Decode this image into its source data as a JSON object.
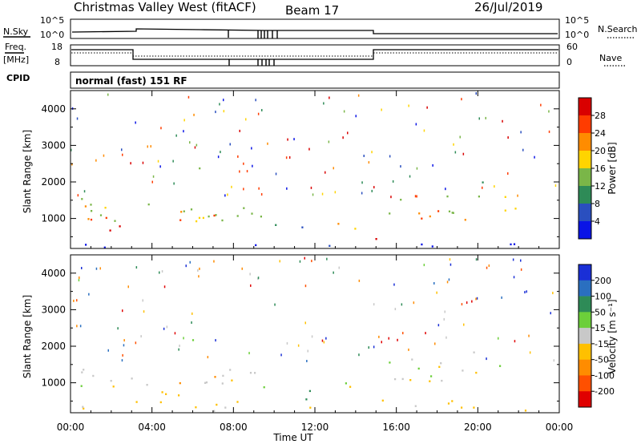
{
  "header": {
    "title": "Christmas Valley West (fitACF)",
    "beam": "Beam 17",
    "date": "26/Jul/2019"
  },
  "params": {
    "nsky_label": "N.Sky",
    "nsearch_label": "N.Search",
    "freq_label": "Freq.",
    "freq_unit": "[MHz]",
    "nave_label": "Nave",
    "cpid_label": "CPID",
    "cpid_value": "normal (fast) 151 RF",
    "noise_ticks": [
      "10^5",
      "10^0"
    ],
    "freq_ticks": [
      "18",
      "8"
    ],
    "nave_ticks": [
      "60",
      "0"
    ]
  },
  "chart_data": [
    {
      "type": "heatmap",
      "name": "power",
      "ylabel": "Slant Range [km]",
      "xlabel": "Time UT",
      "ylim": [
        180,
        4500
      ],
      "y_ticks": [
        1000,
        2000,
        3000,
        4000
      ],
      "x_ticks": [
        "00:00",
        "04:00",
        "08:00",
        "12:00",
        "16:00",
        "20:00",
        "00:00"
      ],
      "x_hours": [
        0,
        4,
        8,
        12,
        16,
        20,
        24
      ],
      "colorbar": {
        "label": "Power [dB]",
        "ticks": [
          "28",
          "24",
          "20",
          "16",
          "12",
          "8",
          "4"
        ],
        "colors": [
          "#d90000",
          "#ff3c00",
          "#ff8c00",
          "#ffd400",
          "#7ab648",
          "#2e8b57",
          "#2a4fbf",
          "#0a14e6"
        ]
      }
    },
    {
      "type": "heatmap",
      "name": "velocity",
      "ylabel": "Slant Range [km]",
      "xlabel": "Time UT",
      "ylim": [
        180,
        4500
      ],
      "y_ticks": [
        1000,
        2000,
        3000,
        4000
      ],
      "x_ticks": [
        "00:00",
        "04:00",
        "08:00",
        "12:00",
        "16:00",
        "20:00",
        "00:00"
      ],
      "x_hours": [
        0,
        4,
        8,
        12,
        16,
        20,
        24
      ],
      "colorbar": {
        "label": "Velocity [m s⁻¹]",
        "ticks": [
          "200",
          "100",
          "50",
          "15",
          "-15",
          "-50",
          "-100",
          "-200"
        ],
        "colors": [
          "#1a2fd6",
          "#2a6fc0",
          "#2e8b57",
          "#6ccf3a",
          "#c8c8c8",
          "#ffc000",
          "#ff8c00",
          "#ff5000",
          "#e00000"
        ]
      }
    }
  ]
}
